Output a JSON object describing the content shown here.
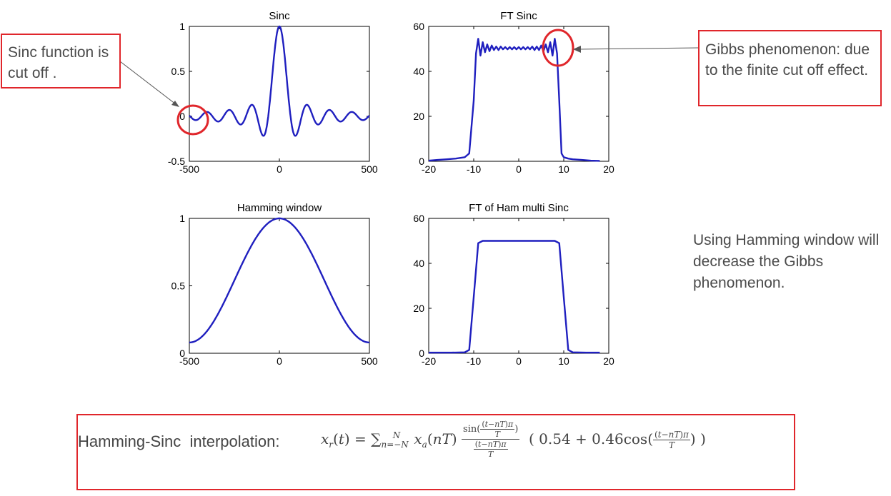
{
  "chart_data": [
    {
      "id": "sinc",
      "type": "line",
      "title": "Sinc",
      "xlim": [
        -500,
        500
      ],
      "ylim": [
        -0.5,
        1
      ],
      "xticks": [
        "-500",
        "0",
        "500"
      ],
      "yticks": [
        "-0.5",
        "0",
        "0.5",
        "1"
      ],
      "series": [
        {
          "function": "sinc",
          "x_range": [
            -500,
            500
          ],
          "zero_spacing": 62,
          "peak": 1.0,
          "color": "#1f1fbf"
        }
      ]
    },
    {
      "id": "ft_sinc",
      "type": "line",
      "title": "FT Sinc",
      "xlim": [
        -20,
        20
      ],
      "ylim": [
        0,
        60
      ],
      "xticks": [
        "-20",
        "-10",
        "0",
        "10",
        "20"
      ],
      "yticks": [
        "0",
        "20",
        "40",
        "60"
      ],
      "series": [
        {
          "color": "#1f1fbf",
          "x": [
            -20,
            -18,
            -16,
            -14,
            -12,
            -11,
            -10,
            -9.5,
            -9,
            -8.5,
            -8,
            -7.5,
            -7,
            -6.5,
            -6,
            -5.5,
            -5,
            -4.5,
            -4,
            -3.5,
            -3,
            -2.5,
            -2,
            -1.5,
            -1,
            -0.5,
            0,
            0.5,
            1,
            1.5,
            2,
            2.5,
            3,
            3.5,
            4,
            4.5,
            5,
            5.5,
            6,
            6.5,
            7,
            7.5,
            8,
            8.5,
            9,
            9.5,
            10,
            11,
            12,
            14,
            16,
            18
          ],
          "y": [
            0.3,
            0.6,
            0.9,
            1.2,
            1.8,
            3.5,
            27,
            48,
            54.5,
            47,
            53,
            48.5,
            52,
            49,
            51.5,
            49.5,
            51,
            49.5,
            51,
            49.8,
            50.8,
            49.8,
            50.8,
            49.8,
            50.8,
            49.8,
            50.8,
            49.8,
            50.8,
            49.8,
            50.8,
            49.8,
            51,
            49.5,
            51,
            49.5,
            51.5,
            49,
            52,
            48.5,
            53,
            47,
            54.5,
            48,
            27,
            3.5,
            1.8,
            1.2,
            0.9,
            0.6,
            0.3,
            0.2
          ]
        }
      ]
    },
    {
      "id": "hamming",
      "type": "line",
      "title": "Hamming window",
      "xlim": [
        -500,
        500
      ],
      "ylim": [
        0,
        1
      ],
      "xticks": [
        "-500",
        "0",
        "500"
      ],
      "yticks": [
        "0",
        "0.5",
        "1"
      ],
      "series": [
        {
          "function": "hamming",
          "x_range": [
            -500,
            500
          ],
          "color": "#1f1fbf"
        }
      ]
    },
    {
      "id": "ft_ham",
      "type": "line",
      "title": "FT of Ham multi Sinc",
      "xlim": [
        -20,
        20
      ],
      "ylim": [
        0,
        60
      ],
      "xticks": [
        "-20",
        "-10",
        "0",
        "10",
        "20"
      ],
      "yticks": [
        "0",
        "20",
        "40",
        "60"
      ],
      "series": [
        {
          "color": "#1f1fbf",
          "x": [
            -20,
            -15,
            -12,
            -11,
            -10,
            -9,
            -8,
            -6,
            -4,
            -2,
            0,
            2,
            4,
            6,
            8,
            9,
            10,
            11,
            12,
            15,
            18
          ],
          "y": [
            0.3,
            0.3,
            0.4,
            1.5,
            25,
            49,
            50,
            50,
            50,
            50,
            50,
            50,
            50,
            50,
            50,
            49,
            25,
            1.5,
            0.4,
            0.3,
            0.3
          ]
        }
      ]
    }
  ],
  "annotations": {
    "sinc_cutoff": "Sinc function is cut off .",
    "gibbs": "Gibbs phenomenon: due to the finite cut off effect.",
    "hamming_note": "Using Hamming window will decrease the Gibbs phenomenon."
  },
  "formula": {
    "label": "Hamming-Sinc  interpolation:",
    "text": "x_r(t) = Σ_{n=-N}^{N} x_a(nT) · [sin((t−nT)π/T)] / [(t−nT)π/T] · ( 0.54 + 0.46cos((t−nT)π/T) )"
  },
  "colors": {
    "line": "#1f1fbf",
    "highlight": "#e0262b",
    "axis": "#000000",
    "note_text": "#4a4a4a"
  }
}
